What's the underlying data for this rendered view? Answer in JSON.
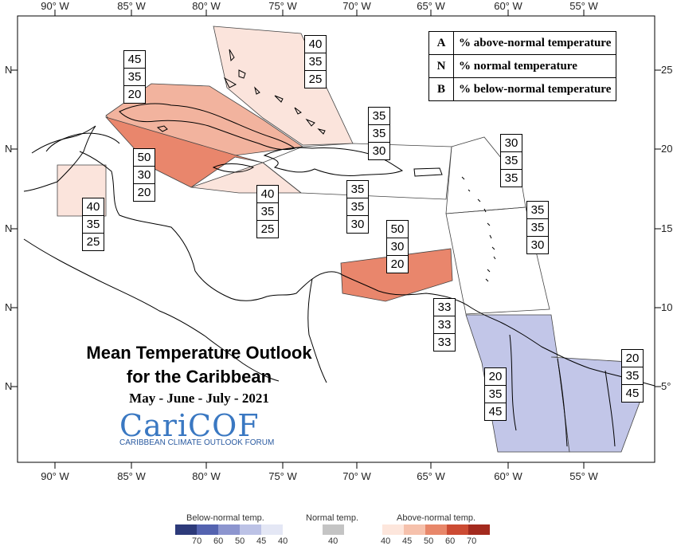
{
  "lon_ticks": [
    "90° W",
    "85° W",
    "80° W",
    "75° W",
    "70° W",
    "65° W",
    "60° W",
    "55° W"
  ],
  "lat_ticks_left": [
    "N",
    "N",
    "N",
    "N",
    "N"
  ],
  "lat_ticks_right": [
    "25",
    "20",
    "15",
    "10",
    "5°"
  ],
  "legend": [
    {
      "code": "A",
      "label": "% above-normal temperature"
    },
    {
      "code": "N",
      "label": "% normal temperature"
    },
    {
      "code": "B",
      "label": "% below-normal temperature"
    }
  ],
  "title_line1": "Mean Temperature Outlook",
  "title_line2": "for the Caribbean",
  "subtitle": "May - June - July - 2021",
  "logo_text": "CariCOF",
  "logo_subtitle": "CARIBBEAN CLIMATE OUTLOOK FORUM",
  "forecast_boxes": [
    {
      "region": "bahamas",
      "values": [
        "40",
        "35",
        "25"
      ],
      "category": "above-normal 40"
    },
    {
      "region": "cuba",
      "values": [
        "45",
        "35",
        "20"
      ],
      "category": "above-normal 45"
    },
    {
      "region": "cayman",
      "values": [
        "50",
        "30",
        "20"
      ],
      "category": "above-normal 50"
    },
    {
      "region": "belize",
      "values": [
        "40",
        "35",
        "25"
      ],
      "category": "above-normal 40"
    },
    {
      "region": "jamaica-south",
      "values": [
        "40",
        "35",
        "25"
      ],
      "category": "above-normal 40"
    },
    {
      "region": "hispaniola-north",
      "values": [
        "35",
        "35",
        "30"
      ],
      "category": "none"
    },
    {
      "region": "hispaniola-south",
      "values": [
        "35",
        "35",
        "30"
      ],
      "category": "none"
    },
    {
      "region": "leeward",
      "values": [
        "30",
        "35",
        "35"
      ],
      "category": "none"
    },
    {
      "region": "windward",
      "values": [
        "35",
        "35",
        "30"
      ],
      "category": "none"
    },
    {
      "region": "abc-islands",
      "values": [
        "50",
        "30",
        "20"
      ],
      "category": "above-normal 50"
    },
    {
      "region": "trinidad",
      "values": [
        "33",
        "33",
        "33"
      ],
      "category": "none"
    },
    {
      "region": "guyana",
      "values": [
        "20",
        "35",
        "45"
      ],
      "category": "below-normal 45"
    },
    {
      "region": "suriname",
      "values": [
        "20",
        "35",
        "45"
      ],
      "category": "below-normal 45"
    }
  ],
  "scale": {
    "below_title": "Below-normal temp.",
    "normal_title": "Normal temp.",
    "above_title": "Above-normal temp.",
    "below_labels": [
      "70",
      "60",
      "50",
      "45",
      "40"
    ],
    "normal_labels": [
      "40"
    ],
    "above_labels": [
      "40",
      "45",
      "50",
      "60",
      "70"
    ],
    "below_colors": [
      "#2d3a7a",
      "#5463b0",
      "#8c95cf",
      "#bcc2e6",
      "#e4e7f5"
    ],
    "normal_colors": [
      "#c4c4c4"
    ],
    "above_colors": [
      "#fde6dc",
      "#f6c1ac",
      "#e8876a",
      "#cc4b33",
      "#a32a1e"
    ]
  },
  "colors": {
    "above40": "#fbe4dc",
    "above45": "#f2b39e",
    "above50": "#e9866c",
    "below45": "#c2c6e8"
  }
}
